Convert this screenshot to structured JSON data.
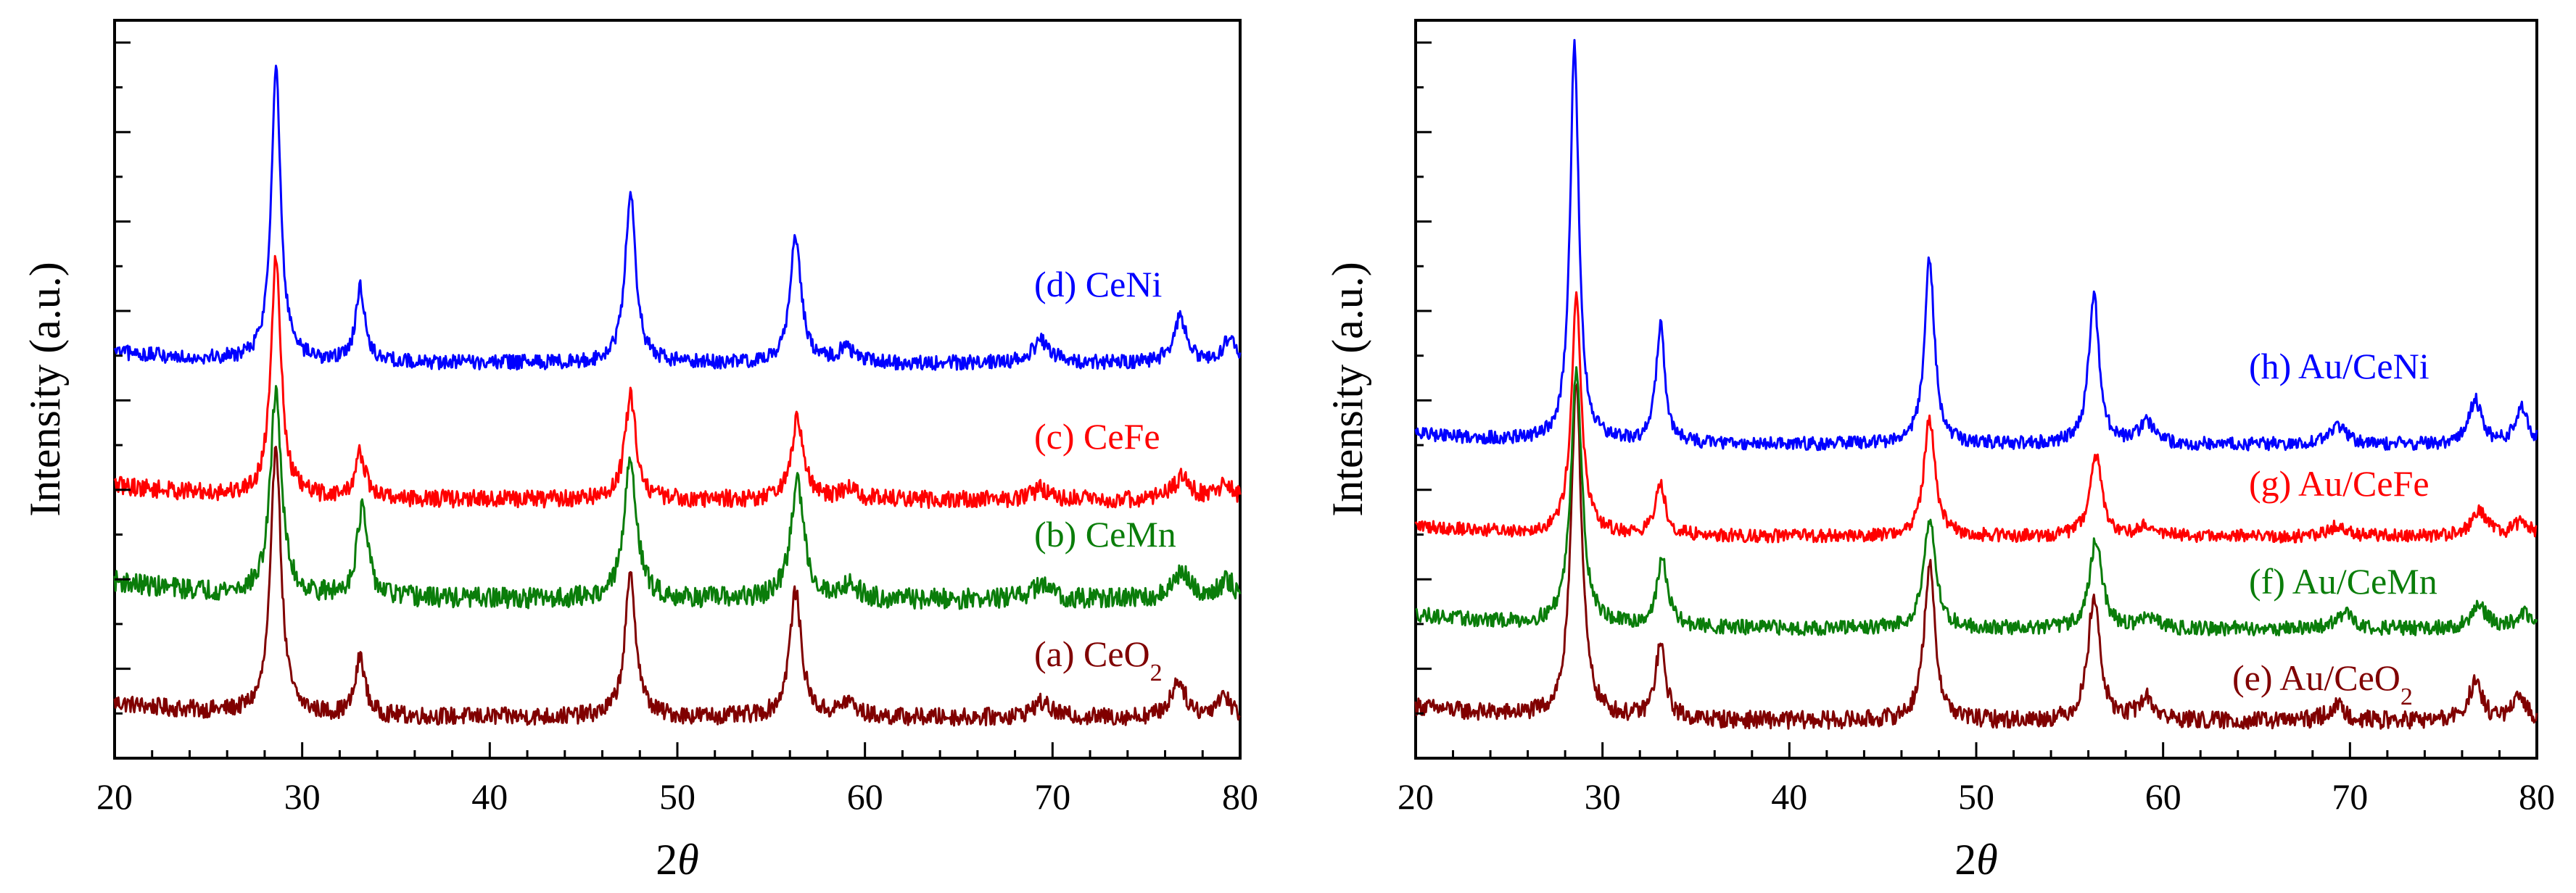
{
  "colors": {
    "a": "#800000",
    "b": "#0a7d0a",
    "c": "#ff0000",
    "d": "#0000ff"
  },
  "chart_data": [
    {
      "type": "line",
      "panel": "left",
      "xlabel_prefix": "2",
      "xlabel_symbol": "θ",
      "ylabel": "Intensity (a.u.)",
      "xlim": [
        20,
        80
      ],
      "ylim": [
        0,
        1
      ],
      "xticks": [
        "20",
        "30",
        "40",
        "50",
        "60",
        "70",
        "80"
      ],
      "series": [
        {
          "id": "a",
          "name": "(a) CeO",
          "subscript": "2",
          "color": "#800000",
          "baseline": 0.055,
          "noise": 0.012,
          "bg_amp": 0.02,
          "peaks": [
            [
              28.6,
              0.37,
              0.32
            ],
            [
              33.1,
              0.08,
              0.3
            ],
            [
              47.5,
              0.19,
              0.36
            ],
            [
              56.3,
              0.17,
              0.38
            ],
            [
              59.1,
              0.02,
              0.5
            ],
            [
              69.4,
              0.02,
              0.6
            ],
            [
              76.7,
              0.05,
              0.45
            ],
            [
              79.1,
              0.03,
              0.45
            ]
          ]
        },
        {
          "id": "b",
          "name": "(b) CeMn",
          "subscript": "",
          "color": "#0a7d0a",
          "baseline": 0.215,
          "noise": 0.014,
          "bg_amp": 0.025,
          "peaks": [
            [
              28.6,
              0.28,
              0.35
            ],
            [
              33.2,
              0.12,
              0.35
            ],
            [
              47.5,
              0.19,
              0.4
            ],
            [
              56.4,
              0.16,
              0.42
            ],
            [
              59.2,
              0.02,
              0.5
            ],
            [
              69.4,
              0.02,
              0.6
            ],
            [
              76.9,
              0.035,
              0.55
            ],
            [
              79.3,
              0.025,
              0.5
            ]
          ]
        },
        {
          "id": "c",
          "name": "(c) CeFe",
          "subscript": "",
          "color": "#ff0000",
          "baseline": 0.35,
          "noise": 0.012,
          "bg_amp": 0.02,
          "peaks": [
            [
              28.6,
              0.33,
              0.32
            ],
            [
              33.1,
              0.06,
              0.32
            ],
            [
              47.5,
              0.14,
              0.36
            ],
            [
              56.4,
              0.11,
              0.38
            ],
            [
              59.1,
              0.015,
              0.5
            ],
            [
              69.4,
              0.015,
              0.6
            ],
            [
              76.9,
              0.03,
              0.55
            ],
            [
              79.2,
              0.02,
              0.5
            ]
          ]
        },
        {
          "id": "d",
          "name": "(d) CeNi",
          "subscript": "",
          "color": "#0000ff",
          "baseline": 0.535,
          "noise": 0.01,
          "bg_amp": 0.015,
          "peaks": [
            [
              28.6,
              0.4,
              0.3
            ],
            [
              33.1,
              0.1,
              0.3
            ],
            [
              47.5,
              0.23,
              0.34
            ],
            [
              56.3,
              0.17,
              0.36
            ],
            [
              59.0,
              0.02,
              0.5
            ],
            [
              69.4,
              0.03,
              0.6
            ],
            [
              76.8,
              0.06,
              0.45
            ],
            [
              79.4,
              0.03,
              0.45
            ]
          ]
        }
      ]
    },
    {
      "type": "line",
      "panel": "right",
      "xlabel_prefix": "2",
      "xlabel_symbol": "θ",
      "ylabel": "Intensity (a.u.)",
      "xlim": [
        20,
        80
      ],
      "ylim": [
        0,
        1
      ],
      "xticks": [
        "20",
        "30",
        "40",
        "50",
        "60",
        "70",
        "80"
      ],
      "series": [
        {
          "id": "e",
          "name": "(e) Au/CeO",
          "subscript": "2",
          "color": "#800000",
          "baseline": 0.05,
          "noise": 0.012,
          "bg_amp": 0.02,
          "peaks": [
            [
              28.6,
              0.46,
              0.33
            ],
            [
              33.1,
              0.1,
              0.32
            ],
            [
              47.5,
              0.21,
              0.36
            ],
            [
              56.3,
              0.17,
              0.38
            ],
            [
              59.1,
              0.03,
              0.5
            ],
            [
              69.3,
              0.02,
              0.6
            ],
            [
              76.7,
              0.05,
              0.45
            ],
            [
              79.1,
              0.03,
              0.45
            ]
          ]
        },
        {
          "id": "f",
          "name": "(f) Au/CeMn",
          "subscript": "",
          "color": "#0a7d0a",
          "baseline": 0.175,
          "noise": 0.01,
          "bg_amp": 0.02,
          "peaks": [
            [
              28.6,
              0.35,
              0.35
            ],
            [
              33.2,
              0.09,
              0.35
            ],
            [
              47.5,
              0.15,
              0.38
            ],
            [
              56.4,
              0.12,
              0.4
            ],
            [
              59.2,
              0.015,
              0.5
            ],
            [
              69.7,
              0.02,
              0.6
            ],
            [
              76.9,
              0.03,
              0.5
            ],
            [
              79.3,
              0.02,
              0.5
            ]
          ]
        },
        {
          "id": "g",
          "name": "(g) Au/CeFe",
          "subscript": "",
          "color": "#ff0000",
          "baseline": 0.3,
          "noise": 0.009,
          "bg_amp": 0.015,
          "peaks": [
            [
              28.6,
              0.32,
              0.32
            ],
            [
              33.1,
              0.07,
              0.32
            ],
            [
              47.5,
              0.16,
              0.36
            ],
            [
              56.4,
              0.11,
              0.38
            ],
            [
              59.1,
              0.015,
              0.5
            ],
            [
              69.4,
              0.015,
              0.6
            ],
            [
              76.9,
              0.035,
              0.5
            ],
            [
              79.2,
              0.02,
              0.5
            ]
          ]
        },
        {
          "id": "h",
          "name": "(h) Au/CeNi",
          "subscript": "",
          "color": "#0000ff",
          "baseline": 0.425,
          "noise": 0.009,
          "bg_amp": 0.015,
          "peaks": [
            [
              28.5,
              0.54,
              0.28
            ],
            [
              33.1,
              0.16,
              0.28
            ],
            [
              47.5,
              0.25,
              0.32
            ],
            [
              56.3,
              0.2,
              0.34
            ],
            [
              59.1,
              0.03,
              0.45
            ],
            [
              69.3,
              0.025,
              0.55
            ],
            [
              76.7,
              0.06,
              0.4
            ],
            [
              79.2,
              0.05,
              0.4
            ]
          ]
        }
      ]
    }
  ]
}
